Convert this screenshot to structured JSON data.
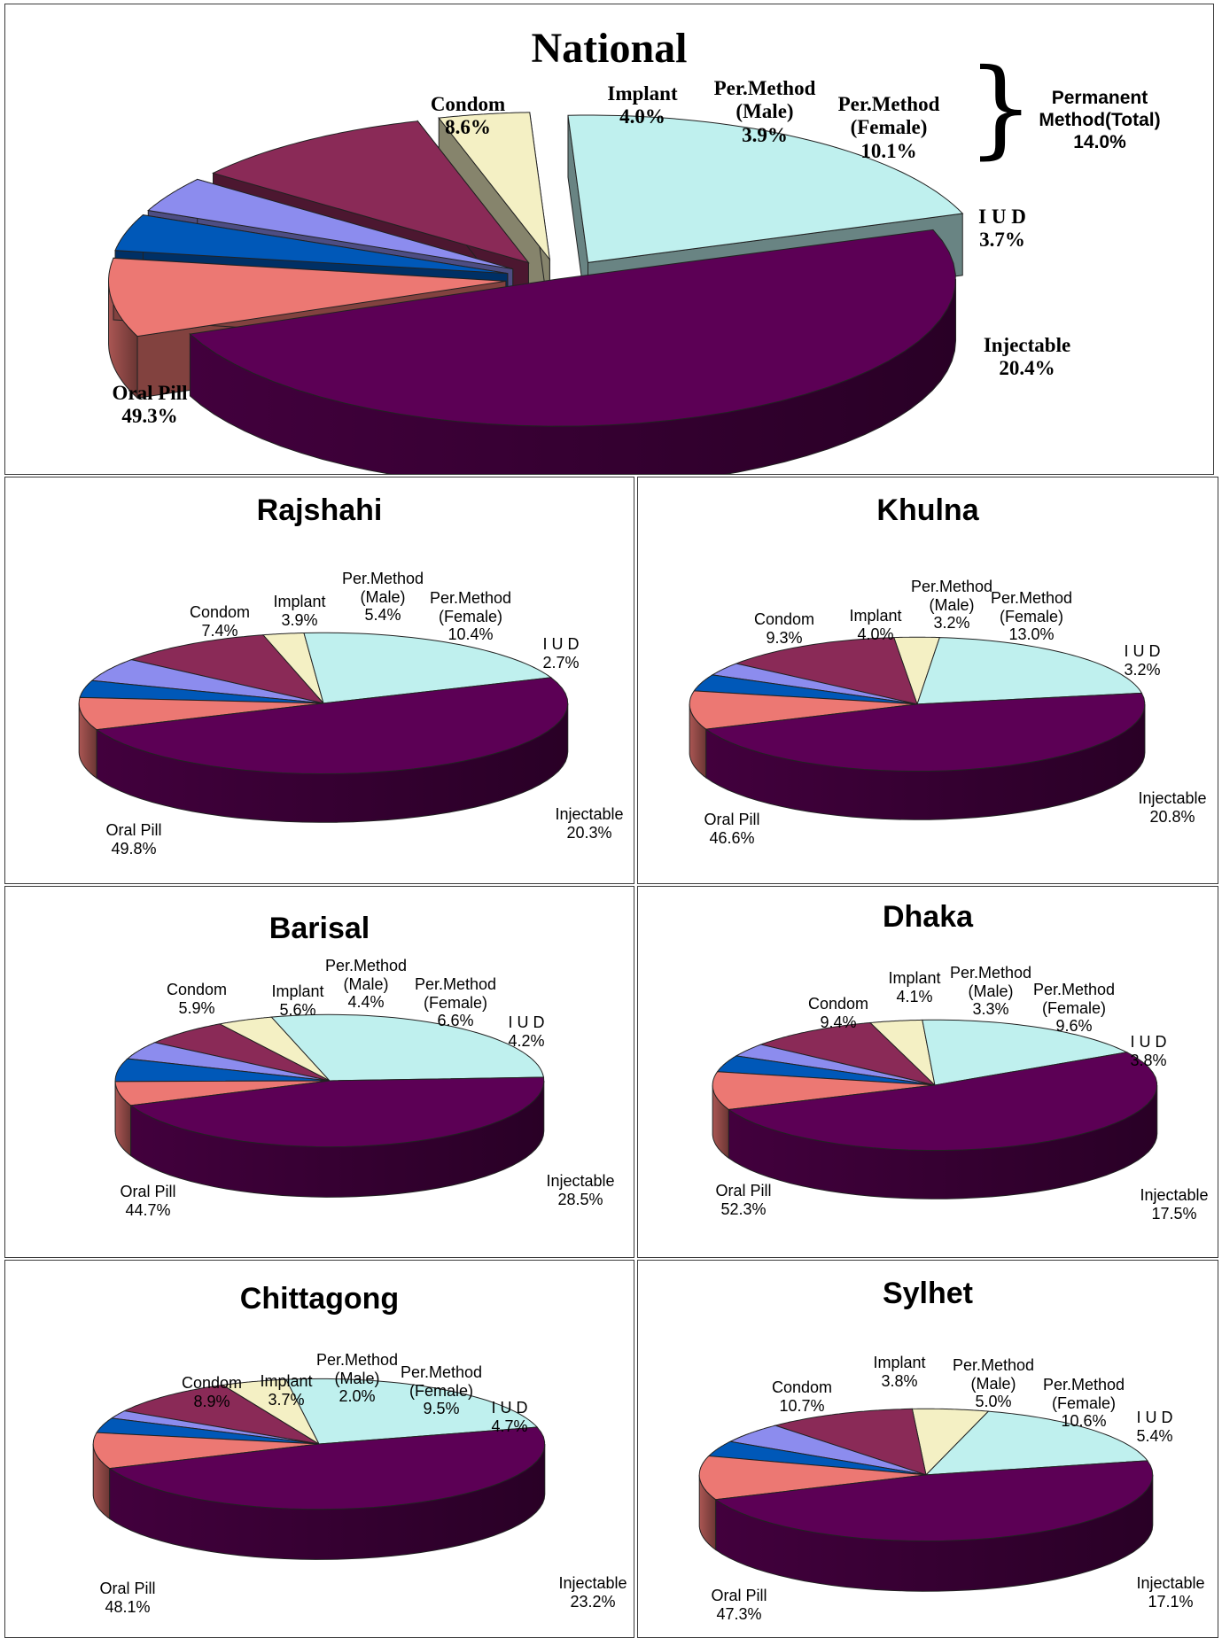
{
  "colors": {
    "oral_pill": "#5c0055",
    "condom": "#ec7873",
    "implant": "#0058b8",
    "per_method_male": "#8c8cee",
    "per_method_female": "#8a2a57",
    "iud": "#f4f0c4",
    "injectable": "#bff0ee"
  },
  "chart_data": [
    {
      "type": "pie",
      "title": "National",
      "exploded": true,
      "bracket_note": {
        "lines": [
          "Permanent",
          "Method(Total)",
          "14.0%"
        ]
      },
      "slices": [
        {
          "label": [
            "Oral Pill"
          ],
          "value": 49.3,
          "value_text": "49.3%",
          "color_key": "oral_pill"
        },
        {
          "label": [
            "Condom"
          ],
          "value": 8.6,
          "value_text": "8.6%",
          "color_key": "condom"
        },
        {
          "label": [
            "Implant"
          ],
          "value": 4.0,
          "value_text": "4.0%",
          "color_key": "implant"
        },
        {
          "label": [
            "Per.Method",
            "(Male)"
          ],
          "value": 3.9,
          "value_text": "3.9%",
          "color_key": "per_method_male"
        },
        {
          "label": [
            "Per.Method",
            "(Female)"
          ],
          "value": 10.1,
          "value_text": "10.1%",
          "color_key": "per_method_female"
        },
        {
          "label": [
            "I U D"
          ],
          "value": 3.7,
          "value_text": "3.7%",
          "color_key": "iud"
        },
        {
          "label": [
            "Injectable"
          ],
          "value": 20.4,
          "value_text": "20.4%",
          "color_key": "injectable"
        }
      ]
    },
    {
      "type": "pie",
      "title": "Rajshahi",
      "slices": [
        {
          "label": [
            "Oral Pill"
          ],
          "value": 49.8,
          "value_text": "49.8%",
          "color_key": "oral_pill"
        },
        {
          "label": [
            "Condom"
          ],
          "value": 7.4,
          "value_text": "7.4%",
          "color_key": "condom"
        },
        {
          "label": [
            "Implant"
          ],
          "value": 3.9,
          "value_text": "3.9%",
          "color_key": "implant"
        },
        {
          "label": [
            "Per.Method",
            "(Male)"
          ],
          "value": 5.4,
          "value_text": "5.4%",
          "color_key": "per_method_male"
        },
        {
          "label": [
            "Per.Method",
            "(Female)"
          ],
          "value": 10.4,
          "value_text": "10.4%",
          "color_key": "per_method_female"
        },
        {
          "label": [
            "I U D"
          ],
          "value": 2.7,
          "value_text": "2.7%",
          "color_key": "iud"
        },
        {
          "label": [
            "Injectable"
          ],
          "value": 20.3,
          "value_text": "20.3%",
          "color_key": "injectable"
        }
      ]
    },
    {
      "type": "pie",
      "title": "Khulna",
      "slices": [
        {
          "label": [
            "Oral Pill"
          ],
          "value": 46.6,
          "value_text": "46.6%",
          "color_key": "oral_pill"
        },
        {
          "label": [
            "Condom"
          ],
          "value": 9.3,
          "value_text": "9.3%",
          "color_key": "condom"
        },
        {
          "label": [
            "Implant"
          ],
          "value": 4.0,
          "value_text": "4.0%",
          "color_key": "implant"
        },
        {
          "label": [
            "Per.Method",
            "(Male)"
          ],
          "value": 3.2,
          "value_text": "3.2%",
          "color_key": "per_method_male"
        },
        {
          "label": [
            "Per.Method",
            "(Female)"
          ],
          "value": 13.0,
          "value_text": "13.0%",
          "color_key": "per_method_female"
        },
        {
          "label": [
            "I U D"
          ],
          "value": 3.2,
          "value_text": "3.2%",
          "color_key": "iud"
        },
        {
          "label": [
            "Injectable"
          ],
          "value": 20.8,
          "value_text": "20.8%",
          "color_key": "injectable"
        }
      ]
    },
    {
      "type": "pie",
      "title": "Barisal",
      "slices": [
        {
          "label": [
            "Oral Pill"
          ],
          "value": 44.7,
          "value_text": "44.7%",
          "color_key": "oral_pill"
        },
        {
          "label": [
            "Condom"
          ],
          "value": 5.9,
          "value_text": "5.9%",
          "color_key": "condom"
        },
        {
          "label": [
            "Implant"
          ],
          "value": 5.6,
          "value_text": "5.6%",
          "color_key": "implant"
        },
        {
          "label": [
            "Per.Method",
            "(Male)"
          ],
          "value": 4.4,
          "value_text": "4.4%",
          "color_key": "per_method_male"
        },
        {
          "label": [
            "Per.Method",
            "(Female)"
          ],
          "value": 6.6,
          "value_text": "6.6%",
          "color_key": "per_method_female"
        },
        {
          "label": [
            "I U D"
          ],
          "value": 4.2,
          "value_text": "4.2%",
          "color_key": "iud"
        },
        {
          "label": [
            "Injectable"
          ],
          "value": 28.5,
          "value_text": "28.5%",
          "color_key": "injectable"
        }
      ]
    },
    {
      "type": "pie",
      "title": "Dhaka",
      "slices": [
        {
          "label": [
            "Oral Pill"
          ],
          "value": 52.3,
          "value_text": "52.3%",
          "color_key": "oral_pill"
        },
        {
          "label": [
            "Condom"
          ],
          "value": 9.4,
          "value_text": "9.4%",
          "color_key": "condom"
        },
        {
          "label": [
            "Implant"
          ],
          "value": 4.1,
          "value_text": "4.1%",
          "color_key": "implant"
        },
        {
          "label": [
            "Per.Method",
            "(Male)"
          ],
          "value": 3.3,
          "value_text": "3.3%",
          "color_key": "per_method_male"
        },
        {
          "label": [
            "Per.Method",
            "(Female)"
          ],
          "value": 9.6,
          "value_text": "9.6%",
          "color_key": "per_method_female"
        },
        {
          "label": [
            "I U D"
          ],
          "value": 3.8,
          "value_text": "3.8%",
          "color_key": "iud"
        },
        {
          "label": [
            "Injectable"
          ],
          "value": 17.5,
          "value_text": "17.5%",
          "color_key": "injectable"
        }
      ]
    },
    {
      "type": "pie",
      "title": "Chittagong",
      "slices": [
        {
          "label": [
            "Oral Pill"
          ],
          "value": 48.1,
          "value_text": "48.1%",
          "color_key": "oral_pill"
        },
        {
          "label": [
            "Condom"
          ],
          "value": 8.9,
          "value_text": "8.9%",
          "color_key": "condom"
        },
        {
          "label": [
            "Implant"
          ],
          "value": 3.7,
          "value_text": "3.7%",
          "color_key": "implant"
        },
        {
          "label": [
            "Per.Method",
            "(Male)"
          ],
          "value": 2.0,
          "value_text": "2.0%",
          "color_key": "per_method_male"
        },
        {
          "label": [
            "Per.Method",
            "(Female)"
          ],
          "value": 9.5,
          "value_text": "9.5%",
          "color_key": "per_method_female"
        },
        {
          "label": [
            "I U D"
          ],
          "value": 4.7,
          "value_text": "4.7%",
          "color_key": "iud"
        },
        {
          "label": [
            "Injectable"
          ],
          "value": 23.2,
          "value_text": "23.2%",
          "color_key": "injectable"
        }
      ]
    },
    {
      "type": "pie",
      "title": "Sylhet",
      "slices": [
        {
          "label": [
            "Oral Pill"
          ],
          "value": 47.3,
          "value_text": "47.3%",
          "color_key": "oral_pill"
        },
        {
          "label": [
            "Condom"
          ],
          "value": 10.7,
          "value_text": "10.7%",
          "color_key": "condom"
        },
        {
          "label": [
            "Implant"
          ],
          "value": 3.8,
          "value_text": "3.8%",
          "color_key": "implant"
        },
        {
          "label": [
            "Per.Method",
            "(Male)"
          ],
          "value": 5.0,
          "value_text": "5.0%",
          "color_key": "per_method_male"
        },
        {
          "label": [
            "Per.Method",
            "(Female)"
          ],
          "value": 10.6,
          "value_text": "10.6%",
          "color_key": "per_method_female"
        },
        {
          "label": [
            "I U D"
          ],
          "value": 5.4,
          "value_text": "5.4%",
          "color_key": "iud"
        },
        {
          "label": [
            "Injectable"
          ],
          "value": 17.1,
          "value_text": "17.1%",
          "color_key": "injectable"
        }
      ]
    }
  ]
}
